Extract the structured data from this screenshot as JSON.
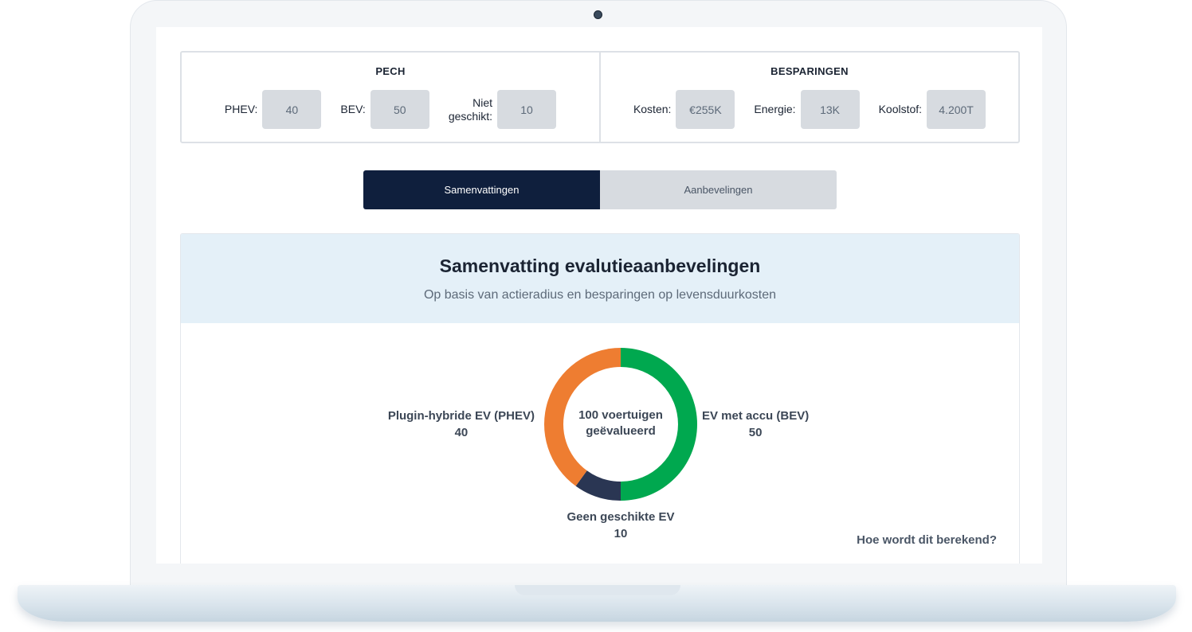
{
  "stats": {
    "pech": {
      "title": "PECH",
      "items": [
        {
          "label": "PHEV:",
          "value": "40"
        },
        {
          "label": "BEV:",
          "value": "50"
        },
        {
          "label_line1": "Niet",
          "label_line2": "geschikt:",
          "value": "10"
        }
      ]
    },
    "besparingen": {
      "title": "BESPARINGEN",
      "items": [
        {
          "label": "Kosten:",
          "value": "€255K"
        },
        {
          "label": "Energie:",
          "value": "13K"
        },
        {
          "label": "Koolstof:",
          "value": "4.200T"
        }
      ]
    }
  },
  "tabs": [
    {
      "label": "Samenvattingen",
      "active": true
    },
    {
      "label": "Aanbevelingen",
      "active": false
    }
  ],
  "summary": {
    "title": "Samenvatting evalutieaanbevelingen",
    "subtitle": "Op basis van actieradius en besparingen op levensduurkosten",
    "center_line1": "100 voertuigen",
    "center_line2": "geëvalueerd",
    "help_link": "Hoe wordt dit berekend?"
  },
  "colors": {
    "bev": "#00a84f",
    "phev": "#ee7d31",
    "none": "#2a3653",
    "tab_active": "#0f1f3d"
  },
  "chart_data": {
    "type": "pie",
    "series": [
      {
        "name": "EV met accu (BEV)",
        "value": 50
      },
      {
        "name": "Geen geschikte EV",
        "value": 10
      },
      {
        "name": "Plugin-hybride EV (PHEV)",
        "value": 40
      }
    ]
  }
}
